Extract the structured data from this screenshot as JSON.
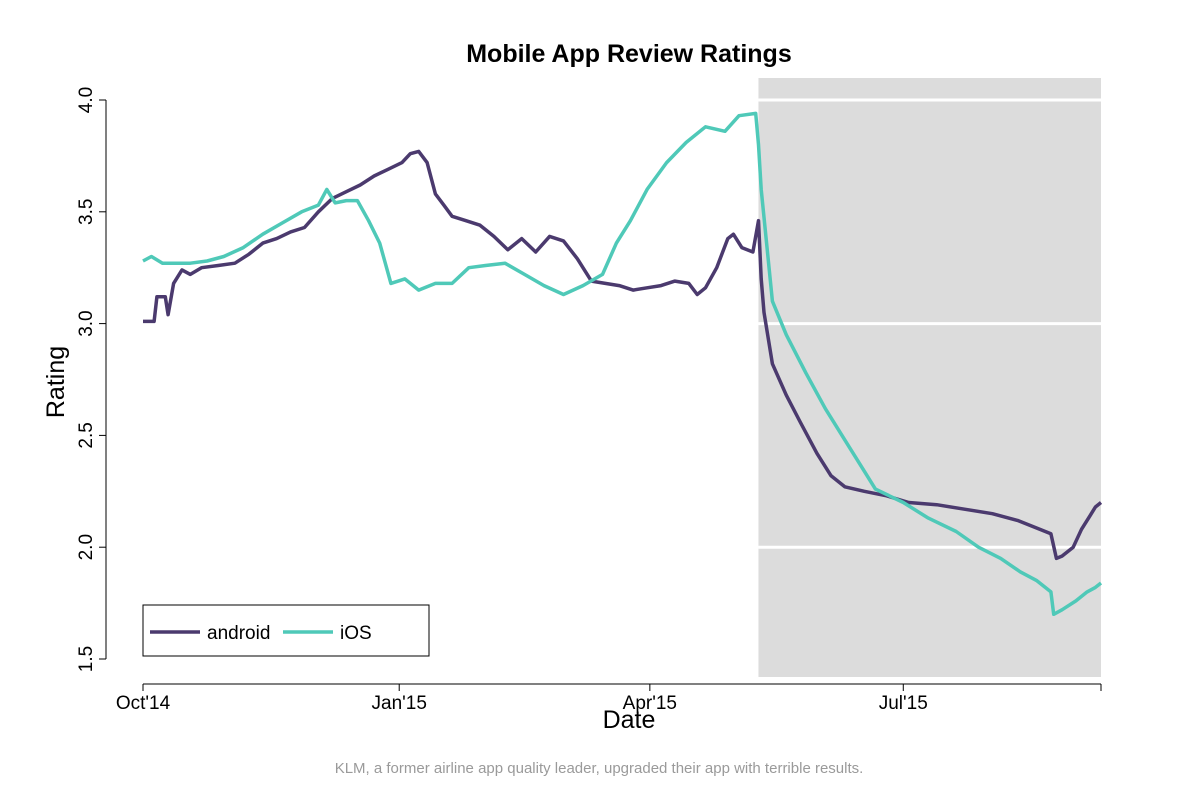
{
  "caption": "KLM, a former airline app quality leader, upgraded their app with terrible results.",
  "chart_data": {
    "type": "line",
    "title": "Mobile App Review Ratings",
    "xlabel": "Date",
    "ylabel": "Rating",
    "xlim": [
      "2014-10-01",
      "2015-09-10"
    ],
    "ylim": [
      1.5,
      4.0
    ],
    "x_ticks": [
      {
        "date": "2014-10-01",
        "label": "Oct'14"
      },
      {
        "date": "2015-01-01",
        "label": "Jan'15"
      },
      {
        "date": "2015-04-01",
        "label": "Apr'15"
      },
      {
        "date": "2015-07-01",
        "label": "Jul'15"
      }
    ],
    "y_ticks": [
      "1.5",
      "2.0",
      "2.5",
      "3.0",
      "3.5",
      "4.0"
    ],
    "highlight_region": {
      "from": "2015-05-10",
      "to": "2015-09-10",
      "color": "#dcdcdc",
      "gridlines": [
        2.0,
        3.0,
        4.0
      ]
    },
    "legend": {
      "position": "bottom-left"
    },
    "series": [
      {
        "name": "android",
        "color": "#4b3a6e",
        "points": [
          [
            "2014-10-01",
            3.01
          ],
          [
            "2014-10-05",
            3.01
          ],
          [
            "2014-10-06",
            3.12
          ],
          [
            "2014-10-09",
            3.12
          ],
          [
            "2014-10-10",
            3.04
          ],
          [
            "2014-10-12",
            3.18
          ],
          [
            "2014-10-15",
            3.24
          ],
          [
            "2014-10-18",
            3.22
          ],
          [
            "2014-10-22",
            3.25
          ],
          [
            "2014-10-28",
            3.26
          ],
          [
            "2014-11-03",
            3.27
          ],
          [
            "2014-11-08",
            3.31
          ],
          [
            "2014-11-13",
            3.36
          ],
          [
            "2014-11-18",
            3.38
          ],
          [
            "2014-11-23",
            3.41
          ],
          [
            "2014-11-28",
            3.43
          ],
          [
            "2014-12-03",
            3.5
          ],
          [
            "2014-12-08",
            3.56
          ],
          [
            "2014-12-13",
            3.59
          ],
          [
            "2014-12-18",
            3.62
          ],
          [
            "2014-12-23",
            3.66
          ],
          [
            "2014-12-28",
            3.69
          ],
          [
            "2015-01-02",
            3.72
          ],
          [
            "2015-01-05",
            3.76
          ],
          [
            "2015-01-08",
            3.77
          ],
          [
            "2015-01-11",
            3.72
          ],
          [
            "2015-01-14",
            3.58
          ],
          [
            "2015-01-17",
            3.53
          ],
          [
            "2015-01-20",
            3.48
          ],
          [
            "2015-01-25",
            3.46
          ],
          [
            "2015-01-30",
            3.44
          ],
          [
            "2015-02-04",
            3.39
          ],
          [
            "2015-02-09",
            3.33
          ],
          [
            "2015-02-14",
            3.38
          ],
          [
            "2015-02-19",
            3.32
          ],
          [
            "2015-02-24",
            3.39
          ],
          [
            "2015-03-01",
            3.37
          ],
          [
            "2015-03-06",
            3.29
          ],
          [
            "2015-03-09",
            3.23
          ],
          [
            "2015-03-11",
            3.19
          ],
          [
            "2015-03-16",
            3.18
          ],
          [
            "2015-03-21",
            3.17
          ],
          [
            "2015-03-26",
            3.15
          ],
          [
            "2015-03-31",
            3.16
          ],
          [
            "2015-04-05",
            3.17
          ],
          [
            "2015-04-10",
            3.19
          ],
          [
            "2015-04-15",
            3.18
          ],
          [
            "2015-04-18",
            3.13
          ],
          [
            "2015-04-21",
            3.16
          ],
          [
            "2015-04-25",
            3.25
          ],
          [
            "2015-04-29",
            3.38
          ],
          [
            "2015-05-01",
            3.4
          ],
          [
            "2015-05-04",
            3.34
          ],
          [
            "2015-05-08",
            3.32
          ],
          [
            "2015-05-10",
            3.46
          ],
          [
            "2015-05-11",
            3.2
          ],
          [
            "2015-05-12",
            3.05
          ],
          [
            "2015-05-15",
            2.82
          ],
          [
            "2015-05-20",
            2.68
          ],
          [
            "2015-05-25",
            2.56
          ],
          [
            "2015-05-31",
            2.42
          ],
          [
            "2015-06-05",
            2.32
          ],
          [
            "2015-06-10",
            2.27
          ],
          [
            "2015-06-17",
            2.25
          ],
          [
            "2015-06-25",
            2.23
          ],
          [
            "2015-07-03",
            2.2
          ],
          [
            "2015-07-13",
            2.19
          ],
          [
            "2015-07-23",
            2.17
          ],
          [
            "2015-08-02",
            2.15
          ],
          [
            "2015-08-11",
            2.12
          ],
          [
            "2015-08-19",
            2.08
          ],
          [
            "2015-08-23",
            2.06
          ],
          [
            "2015-08-25",
            1.95
          ],
          [
            "2015-08-27",
            1.96
          ],
          [
            "2015-08-31",
            2.0
          ],
          [
            "2015-09-03",
            2.08
          ],
          [
            "2015-09-06",
            2.14
          ],
          [
            "2015-09-08",
            2.18
          ],
          [
            "2015-09-10",
            2.2
          ]
        ]
      },
      {
        "name": "iOS",
        "color": "#4fc9b8",
        "points": [
          [
            "2014-10-01",
            3.28
          ],
          [
            "2014-10-04",
            3.3
          ],
          [
            "2014-10-08",
            3.27
          ],
          [
            "2014-10-14",
            3.27
          ],
          [
            "2014-10-18",
            3.27
          ],
          [
            "2014-10-24",
            3.28
          ],
          [
            "2014-10-30",
            3.3
          ],
          [
            "2014-11-06",
            3.34
          ],
          [
            "2014-11-13",
            3.4
          ],
          [
            "2014-11-20",
            3.45
          ],
          [
            "2014-11-27",
            3.5
          ],
          [
            "2014-12-03",
            3.53
          ],
          [
            "2014-12-06",
            3.6
          ],
          [
            "2014-12-09",
            3.54
          ],
          [
            "2014-12-13",
            3.55
          ],
          [
            "2014-12-17",
            3.55
          ],
          [
            "2014-12-21",
            3.46
          ],
          [
            "2014-12-25",
            3.36
          ],
          [
            "2014-12-27",
            3.27
          ],
          [
            "2014-12-29",
            3.18
          ],
          [
            "2015-01-03",
            3.2
          ],
          [
            "2015-01-08",
            3.15
          ],
          [
            "2015-01-14",
            3.18
          ],
          [
            "2015-01-20",
            3.18
          ],
          [
            "2015-01-26",
            3.25
          ],
          [
            "2015-02-01",
            3.26
          ],
          [
            "2015-02-08",
            3.27
          ],
          [
            "2015-02-15",
            3.22
          ],
          [
            "2015-02-22",
            3.17
          ],
          [
            "2015-03-01",
            3.13
          ],
          [
            "2015-03-08",
            3.17
          ],
          [
            "2015-03-15",
            3.22
          ],
          [
            "2015-03-20",
            3.36
          ],
          [
            "2015-03-25",
            3.46
          ],
          [
            "2015-03-31",
            3.6
          ],
          [
            "2015-04-07",
            3.72
          ],
          [
            "2015-04-14",
            3.81
          ],
          [
            "2015-04-21",
            3.88
          ],
          [
            "2015-04-28",
            3.86
          ],
          [
            "2015-05-03",
            3.93
          ],
          [
            "2015-05-09",
            3.94
          ],
          [
            "2015-05-10",
            3.8
          ],
          [
            "2015-05-11",
            3.6
          ],
          [
            "2015-05-13",
            3.35
          ],
          [
            "2015-05-15",
            3.1
          ],
          [
            "2015-05-20",
            2.95
          ],
          [
            "2015-05-27",
            2.78
          ],
          [
            "2015-06-03",
            2.62
          ],
          [
            "2015-06-10",
            2.48
          ],
          [
            "2015-06-16",
            2.36
          ],
          [
            "2015-06-21",
            2.26
          ],
          [
            "2015-07-01",
            2.2
          ],
          [
            "2015-07-10",
            2.13
          ],
          [
            "2015-07-20",
            2.07
          ],
          [
            "2015-07-28",
            2.0
          ],
          [
            "2015-08-05",
            1.95
          ],
          [
            "2015-08-12",
            1.89
          ],
          [
            "2015-08-18",
            1.85
          ],
          [
            "2015-08-23",
            1.8
          ],
          [
            "2015-08-24",
            1.7
          ],
          [
            "2015-08-27",
            1.72
          ],
          [
            "2015-09-01",
            1.76
          ],
          [
            "2015-09-05",
            1.8
          ],
          [
            "2015-09-08",
            1.82
          ],
          [
            "2015-09-10",
            1.84
          ]
        ]
      }
    ]
  }
}
